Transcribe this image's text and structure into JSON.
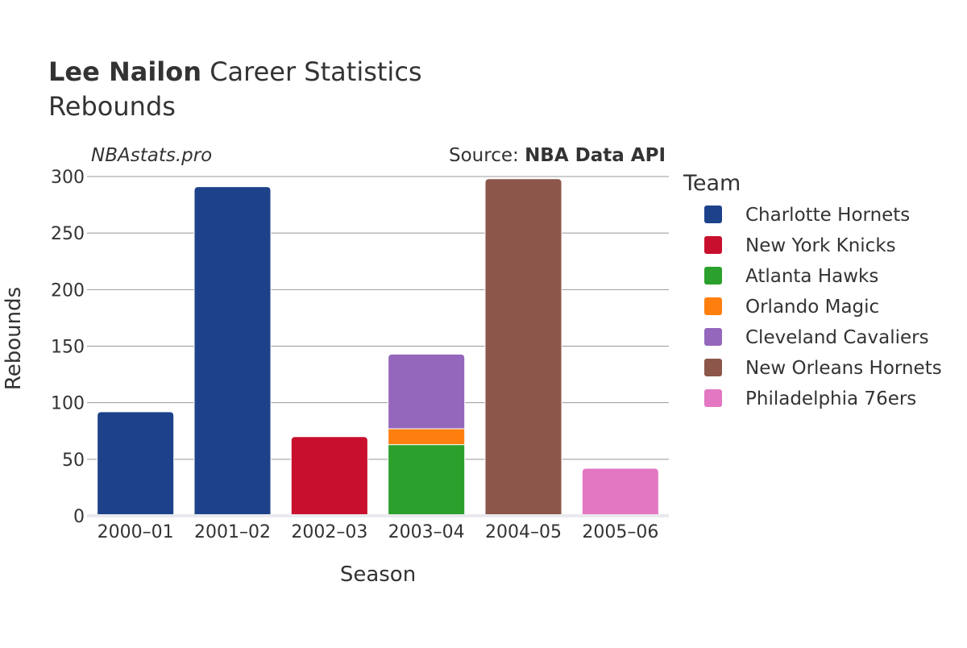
{
  "header": {
    "title_bold": "Lee Nailon",
    "title_rest": " Career Statistics",
    "subtitle": "Rebounds",
    "watermark": "NBAstats.pro",
    "source_prefix": "Source: ",
    "source_bold": "NBA Data API"
  },
  "legend": {
    "title": "Team"
  },
  "chart_data": {
    "type": "bar",
    "stacked": true,
    "xlabel": "Season",
    "ylabel": "Rebounds",
    "ylim": [
      0,
      300
    ],
    "yticks": [
      0,
      50,
      100,
      150,
      200,
      250,
      300
    ],
    "grid": true,
    "legend_position": "right",
    "categories": [
      "2000–01",
      "2001–02",
      "2002–03",
      "2003–04",
      "2004–05",
      "2005–06"
    ],
    "series": [
      {
        "name": "Charlotte Hornets",
        "color": "#1d428a",
        "values": [
          92,
          291,
          0,
          0,
          0,
          0
        ]
      },
      {
        "name": "New York Knicks",
        "color": "#c8102e",
        "values": [
          0,
          0,
          70,
          0,
          0,
          0
        ]
      },
      {
        "name": "Atlanta Hawks",
        "color": "#2ca02c",
        "values": [
          0,
          0,
          0,
          63,
          0,
          0
        ]
      },
      {
        "name": "Orlando Magic",
        "color": "#ff7f0e",
        "values": [
          0,
          0,
          0,
          14,
          0,
          0
        ]
      },
      {
        "name": "Cleveland Cavaliers",
        "color": "#9467bd",
        "values": [
          0,
          0,
          0,
          66,
          0,
          0
        ]
      },
      {
        "name": "New Orleans Hornets",
        "color": "#8c564b",
        "values": [
          0,
          0,
          0,
          0,
          298,
          0
        ]
      },
      {
        "name": "Philadelphia 76ers",
        "color": "#e377c2",
        "values": [
          0,
          0,
          0,
          0,
          0,
          42
        ]
      }
    ]
  }
}
